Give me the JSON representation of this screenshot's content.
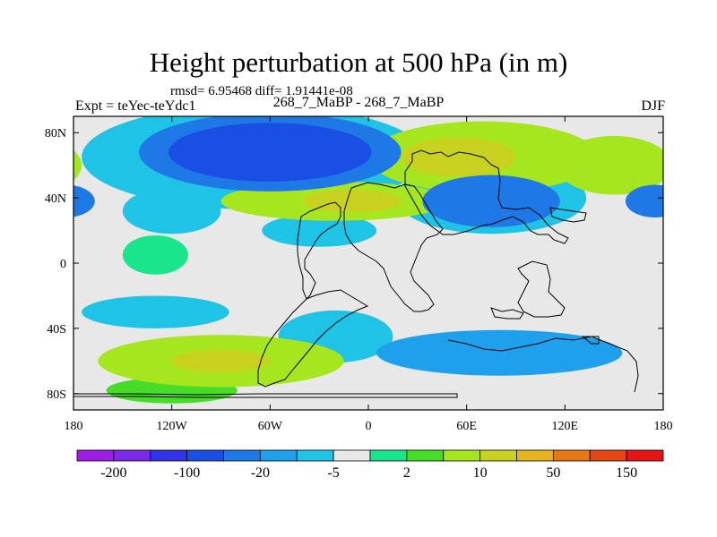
{
  "chart_data": {
    "type": "heatmap",
    "title": "Height perturbation at 500 hPa (in m)",
    "stats_line": "rmsd= 6.95468  diff= 1.91441e-08",
    "expt_label": "Expt = teYec-teYdc1",
    "case_label": "268_7_MaBP - 268_7_MaBP",
    "season": "DJF",
    "xlim": [
      -180,
      180
    ],
    "ylim": [
      -90,
      90
    ],
    "x_ticks": [
      {
        "value": -180,
        "label": "180"
      },
      {
        "value": -120,
        "label": "120W"
      },
      {
        "value": -60,
        "label": "60W"
      },
      {
        "value": 0,
        "label": "0"
      },
      {
        "value": 60,
        "label": "60E"
      },
      {
        "value": 120,
        "label": "120E"
      },
      {
        "value": 180,
        "label": "180"
      }
    ],
    "y_ticks": [
      {
        "value": 80,
        "label": "80N"
      },
      {
        "value": 40,
        "label": "40N"
      },
      {
        "value": 0,
        "label": "0"
      },
      {
        "value": -40,
        "label": "40S"
      },
      {
        "value": -80,
        "label": "80S"
      }
    ],
    "colorbar": {
      "colors": [
        "#9b1de6",
        "#7a2ae8",
        "#3232e6",
        "#1a4fe6",
        "#1e78e6",
        "#1ea0ec",
        "#1ec3e6",
        "#e8e8e8",
        "#19e68c",
        "#46dc28",
        "#a5e61e",
        "#c8d21e",
        "#e6b41e",
        "#e67814",
        "#e64614",
        "#e61414"
      ],
      "labels": [
        "-200",
        "-100",
        "-20",
        "-5",
        "2",
        "10",
        "50",
        "150"
      ]
    },
    "field_patches": [
      {
        "name": "arctic-low-core",
        "lon": -60,
        "lat": 68,
        "rx": 62,
        "ry": 18,
        "level": -40
      },
      {
        "name": "arctic-low-mid",
        "lon": -60,
        "lat": 68,
        "rx": 80,
        "ry": 24,
        "level": -15
      },
      {
        "name": "arctic-low-outer",
        "lon": -70,
        "lat": 65,
        "rx": 105,
        "ry": 32,
        "level": -4
      },
      {
        "name": "n-atlantic-high",
        "lon": 70,
        "lat": 65,
        "rx": 70,
        "ry": 22,
        "level": 12
      },
      {
        "name": "n-atlantic-high-core",
        "lon": 55,
        "lat": 65,
        "rx": 35,
        "ry": 12,
        "level": 40
      },
      {
        "name": "ne-pacific-high",
        "lon": 150,
        "lat": 60,
        "rx": 35,
        "ry": 18,
        "level": 10
      },
      {
        "name": "midlat-ridge",
        "lon": -20,
        "lat": 38,
        "rx": 70,
        "ry": 12,
        "level": 10
      },
      {
        "name": "midlat-ridge-core",
        "lon": -10,
        "lat": 38,
        "rx": 30,
        "ry": 7,
        "level": 30
      },
      {
        "name": "asia-low",
        "lon": 75,
        "lat": 38,
        "rx": 42,
        "ry": 16,
        "level": -12
      },
      {
        "name": "asia-low-outer",
        "lon": 75,
        "lat": 40,
        "rx": 58,
        "ry": 22,
        "level": -4
      },
      {
        "name": "dateline-low",
        "lon": 175,
        "lat": 38,
        "rx": 18,
        "ry": 10,
        "level": -12
      },
      {
        "name": "w-pacific-low",
        "lon": -120,
        "lat": 32,
        "rx": 30,
        "ry": 14,
        "level": -4
      },
      {
        "name": "subtrop-low",
        "lon": -30,
        "lat": 20,
        "rx": 35,
        "ry": 10,
        "level": -4
      },
      {
        "name": "s-pacific-high",
        "lon": -90,
        "lat": -60,
        "rx": 75,
        "ry": 16,
        "level": 10
      },
      {
        "name": "s-pacific-high-core",
        "lon": -90,
        "lat": -60,
        "rx": 30,
        "ry": 7,
        "level": 30
      },
      {
        "name": "s-low-band",
        "lon": -130,
        "lat": -30,
        "rx": 45,
        "ry": 10,
        "level": -4
      },
      {
        "name": "s-indian-low",
        "lon": 80,
        "lat": -55,
        "rx": 75,
        "ry": 14,
        "level": -6
      },
      {
        "name": "s-atlantic-low",
        "lon": -20,
        "lat": -45,
        "rx": 35,
        "ry": 16,
        "level": -4
      },
      {
        "name": "tropic-patch",
        "lon": -130,
        "lat": 5,
        "rx": 20,
        "ry": 12,
        "level": 3
      },
      {
        "name": "antarctic-high",
        "lon": -120,
        "lat": -78,
        "rx": 40,
        "ry": 8,
        "level": 5
      }
    ]
  }
}
